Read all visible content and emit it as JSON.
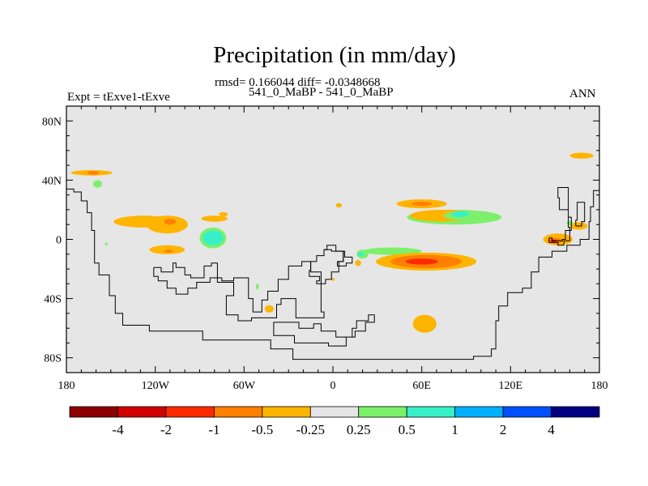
{
  "header": {
    "title": "Precipitation (in mm/day)",
    "stats": "rmsd= 0.166044 diff= -0.0348668",
    "case_pair": "541_0_MaBP - 541_0_MaBP",
    "expt": "Expt = tExve1-tExve",
    "season": "ANN"
  },
  "chart_data": {
    "type": "heatmap",
    "title": "Precipitation (in mm/day)",
    "subtitle": "rmsd= 0.166044 diff= -0.0348668",
    "xlabel": "",
    "ylabel": "",
    "xlim": [
      -180,
      180
    ],
    "ylim": [
      -90,
      90
    ],
    "x_ticks": [
      {
        "value": -180,
        "label": "180"
      },
      {
        "value": -120,
        "label": "120W"
      },
      {
        "value": -60,
        "label": "60W"
      },
      {
        "value": 0,
        "label": "0"
      },
      {
        "value": 60,
        "label": "60E"
      },
      {
        "value": 120,
        "label": "120E"
      },
      {
        "value": 180,
        "label": "180"
      }
    ],
    "y_ticks": [
      {
        "value": 80,
        "label": "80N"
      },
      {
        "value": 40,
        "label": "40N"
      },
      {
        "value": 0,
        "label": "0"
      },
      {
        "value": -40,
        "label": "40S"
      },
      {
        "value": -80,
        "label": "80S"
      }
    ],
    "background_color": "#e6e6e6",
    "levels": [
      "-4",
      "-2",
      "-1",
      "-0.5",
      "-0.25",
      "0.25",
      "0.5",
      "1",
      "2",
      "4"
    ],
    "colors": [
      "#8c0000",
      "#d10000",
      "#ff2a00",
      "#ff7f00",
      "#ffb400",
      "#e6e6e6",
      "#7cf06a",
      "#38f0c8",
      "#00b0ff",
      "#0050ff",
      "#000080"
    ],
    "regions": [
      {
        "label": "ring",
        "lon": 168,
        "lat": 56.5,
        "rx": 8,
        "ry": 2,
        "color": "#ffb400"
      },
      {
        "label": "nw-pac",
        "lon": -163,
        "lat": 45,
        "rx": 14,
        "ry": 1.8,
        "color": "#ffb400"
      },
      {
        "label": "nw-pac",
        "lon": -162,
        "lat": 45,
        "rx": 4,
        "ry": 1.2,
        "color": "#ff7f00"
      },
      {
        "label": "npac-wet",
        "lon": -159,
        "lat": 37.5,
        "rx": 3,
        "ry": 2.5,
        "color": "#7cf06a"
      },
      {
        "label": "e-pac",
        "lon": -128,
        "lat": 12,
        "rx": 20,
        "ry": 4,
        "color": "#ffb400"
      },
      {
        "label": "e-pac",
        "lon": -112,
        "lat": 10,
        "rx": 14,
        "ry": 6,
        "color": "#ffb400"
      },
      {
        "label": "e-pac",
        "lon": -110,
        "lat": 12,
        "rx": 4,
        "ry": 2,
        "color": "#ff7f00"
      },
      {
        "label": "e-pac-s",
        "lon": -112,
        "lat": -7,
        "rx": 12,
        "ry": 3,
        "color": "#ffb400"
      },
      {
        "label": "e-pac-s",
        "lon": -111,
        "lat": -8,
        "rx": 3,
        "ry": 1,
        "color": "#ff7f00"
      },
      {
        "label": "amazon-wet",
        "lon": -81,
        "lat": 1,
        "rx": 9,
        "ry": 7,
        "color": "#7cf06a"
      },
      {
        "label": "amazon-wet",
        "lon": -81,
        "lat": 1,
        "rx": 7,
        "ry": 5,
        "color": "#38f0c8"
      },
      {
        "label": "caribbean",
        "lon": -80,
        "lat": 14,
        "rx": 9,
        "ry": 2,
        "color": "#ffb400"
      },
      {
        "label": "s-atl",
        "lon": -43,
        "lat": -47,
        "rx": 3,
        "ry": 2.5,
        "color": "#ffb400"
      },
      {
        "label": "s-atl-wet",
        "lon": -51,
        "lat": -32,
        "rx": 1,
        "ry": 2,
        "color": "#7cf06a"
      },
      {
        "label": "gulf",
        "lon": -74,
        "lat": 17,
        "rx": 3,
        "ry": 1.5,
        "color": "#ffb400"
      },
      {
        "label": "mid-pac",
        "lon": -153,
        "lat": -3,
        "rx": 1,
        "ry": 1,
        "color": "#7cf06a"
      },
      {
        "label": "n-africa",
        "lon": 4,
        "lat": 23,
        "rx": 2,
        "ry": 1.5,
        "color": "#ffb400"
      },
      {
        "label": "india",
        "lon": 60,
        "lat": 24,
        "rx": 17,
        "ry": 3,
        "color": "#ffb400"
      },
      {
        "label": "india",
        "lon": 60,
        "lat": 24,
        "rx": 7,
        "ry": 1.5,
        "color": "#ff7f00"
      },
      {
        "label": "se-asia",
        "lon": 82,
        "lat": 15,
        "rx": 32,
        "ry": 5,
        "color": "#7cf06a"
      },
      {
        "label": "se-asia",
        "lon": 74,
        "lat": 16,
        "rx": 22,
        "ry": 4,
        "color": "#ffb400"
      },
      {
        "label": "se-asia",
        "lon": 87,
        "lat": 16,
        "rx": 12,
        "ry": 3,
        "color": "#7cf06a"
      },
      {
        "label": "se-asia",
        "lon": 86,
        "lat": 17,
        "rx": 6,
        "ry": 2,
        "color": "#38f0c8"
      },
      {
        "label": "equ-wet",
        "lon": 40,
        "lat": -8,
        "rx": 20,
        "ry": 2.5,
        "color": "#7cf06a"
      },
      {
        "label": "s-indian",
        "lon": 63,
        "lat": -15,
        "rx": 34,
        "ry": 6,
        "color": "#ffb400"
      },
      {
        "label": "s-indian",
        "lon": 63,
        "lat": -15,
        "rx": 24,
        "ry": 4.5,
        "color": "#ff7f00"
      },
      {
        "label": "s-indian",
        "lon": 60,
        "lat": -15,
        "rx": 11,
        "ry": 2,
        "color": "#ff2a00"
      },
      {
        "label": "congo-wet",
        "lon": 20,
        "lat": -10,
        "rx": 4,
        "ry": 3,
        "color": "#7cf06a"
      },
      {
        "label": "congo-wet",
        "lon": 19,
        "lat": -10,
        "rx": 2,
        "ry": 1.5,
        "color": "#38f0c8"
      },
      {
        "label": "africa-w",
        "lon": 17,
        "lat": -16,
        "rx": 2,
        "ry": 2,
        "color": "#ffb400"
      },
      {
        "label": "s-ocean",
        "lon": 62,
        "lat": -57,
        "rx": 8,
        "ry": 6,
        "color": "#ffb400"
      },
      {
        "label": "w-pac",
        "lon": 152,
        "lat": 0,
        "rx": 10,
        "ry": 4,
        "color": "#ffb400"
      },
      {
        "label": "w-pac",
        "lon": 150,
        "lat": -1,
        "rx": 5,
        "ry": 2,
        "color": "#ff7f00"
      },
      {
        "label": "w-pac",
        "lon": 149,
        "lat": -1,
        "rx": 2,
        "ry": 1,
        "color": "#ff2a00"
      },
      {
        "label": "w-pac-n",
        "lon": 166,
        "lat": 9,
        "rx": 6,
        "ry": 2.5,
        "color": "#ffb400"
      },
      {
        "label": "w-pac-n",
        "lon": 160,
        "lat": 11,
        "rx": 2,
        "ry": 1.5,
        "color": "#7cf06a"
      },
      {
        "label": "scattered",
        "lon": 0,
        "lat": -27,
        "rx": 1,
        "ry": 1,
        "color": "#ffb400"
      }
    ],
    "coastlines": [
      [
        [
          -180,
          34
        ],
        [
          -175,
          34
        ],
        [
          -175,
          32
        ],
        [
          -170,
          32
        ],
        [
          -170,
          26
        ],
        [
          -166,
          26
        ],
        [
          -166,
          18
        ],
        [
          -163,
          18
        ],
        [
          -163,
          6
        ],
        [
          -161,
          6
        ],
        [
          -161,
          -16
        ],
        [
          -158,
          -16
        ],
        [
          -158,
          -24
        ],
        [
          -151,
          -24
        ],
        [
          -151,
          -38
        ],
        [
          -147,
          -38
        ],
        [
          -147,
          -50
        ],
        [
          -142,
          -50
        ],
        [
          -142,
          -58
        ],
        [
          -124,
          -58
        ],
        [
          -124,
          -62
        ],
        [
          -88,
          -62
        ],
        [
          -88,
          -68
        ],
        [
          -42,
          -68
        ],
        [
          -42,
          -74
        ],
        [
          -27,
          -74
        ],
        [
          -27,
          -81
        ],
        [
          95,
          -81
        ],
        [
          95,
          -79
        ],
        [
          107,
          -79
        ],
        [
          107,
          -74
        ],
        [
          110,
          -74
        ],
        [
          110,
          -55
        ],
        [
          112,
          -55
        ],
        [
          112,
          -45
        ],
        [
          118,
          -45
        ],
        [
          118,
          -36
        ],
        [
          128,
          -36
        ],
        [
          128,
          -33
        ],
        [
          134,
          -33
        ],
        [
          134,
          -22
        ],
        [
          139,
          -22
        ],
        [
          139,
          -12
        ],
        [
          148,
          -12
        ],
        [
          148,
          -8
        ],
        [
          158,
          -8
        ],
        [
          158,
          -4
        ],
        [
          167,
          -4
        ],
        [
          167,
          0
        ],
        [
          173,
          0
        ],
        [
          173,
          12
        ],
        [
          174,
          12
        ],
        [
          174,
          22
        ],
        [
          176,
          22
        ],
        [
          176,
          33
        ],
        [
          180,
          33
        ]
      ],
      [
        [
          -121,
          -19
        ],
        [
          -116,
          -19
        ],
        [
          -116,
          -22
        ],
        [
          -108,
          -22
        ],
        [
          -108,
          -16
        ],
        [
          -106,
          -16
        ],
        [
          -106,
          -19
        ],
        [
          -100,
          -19
        ],
        [
          -100,
          -24
        ],
        [
          -96,
          -24
        ],
        [
          -96,
          -26
        ],
        [
          -87,
          -26
        ],
        [
          -87,
          -18
        ],
        [
          -82,
          -18
        ],
        [
          -82,
          -16
        ],
        [
          -78,
          -16
        ],
        [
          -78,
          -29
        ],
        [
          -67,
          -29
        ],
        [
          -67,
          -38
        ],
        [
          -72,
          -38
        ],
        [
          -72,
          -51
        ],
        [
          -64,
          -51
        ],
        [
          -64,
          -55
        ],
        [
          -55,
          -55
        ],
        [
          -55,
          -53
        ],
        [
          -38,
          -53
        ],
        [
          -38,
          -44
        ],
        [
          -35,
          -44
        ],
        [
          -35,
          -40
        ],
        [
          -25,
          -40
        ],
        [
          -25,
          -53
        ],
        [
          -6,
          -53
        ],
        [
          -6,
          -49
        ],
        [
          -8,
          -49
        ],
        [
          -8,
          -22
        ],
        [
          -15,
          -22
        ],
        [
          -15,
          -15
        ],
        [
          -21,
          -15
        ],
        [
          -21,
          -18
        ],
        [
          -30,
          -18
        ],
        [
          -30,
          -27
        ],
        [
          -37,
          -27
        ],
        [
          -37,
          -35
        ],
        [
          -44,
          -35
        ],
        [
          -44,
          -41
        ],
        [
          -48,
          -41
        ],
        [
          -48,
          -49
        ],
        [
          -54,
          -49
        ],
        [
          -54,
          -40
        ],
        [
          -57,
          -40
        ],
        [
          -57,
          -26
        ],
        [
          -67,
          -26
        ],
        [
          -67,
          -28
        ],
        [
          -75,
          -28
        ],
        [
          -75,
          -26
        ],
        [
          -83,
          -26
        ],
        [
          -83,
          -29
        ],
        [
          -92,
          -29
        ],
        [
          -92,
          -33
        ],
        [
          -98,
          -33
        ],
        [
          -98,
          -37
        ],
        [
          -106,
          -37
        ],
        [
          -106,
          -33
        ],
        [
          -112,
          -33
        ],
        [
          -112,
          -28
        ],
        [
          -118,
          -28
        ],
        [
          -118,
          -25
        ],
        [
          -121,
          -25
        ],
        [
          -121,
          -19
        ]
      ],
      [
        [
          -15,
          -15
        ],
        [
          -11,
          -15
        ],
        [
          -11,
          -11
        ],
        [
          -6,
          -11
        ],
        [
          -6,
          -7
        ],
        [
          -1,
          -7
        ],
        [
          -1,
          -8
        ],
        [
          7,
          -8
        ],
        [
          7,
          -15
        ],
        [
          4,
          -15
        ],
        [
          4,
          -22
        ],
        [
          -1,
          -22
        ],
        [
          -1,
          -27
        ],
        [
          -5,
          -27
        ],
        [
          -5,
          -30
        ],
        [
          -11,
          -30
        ],
        [
          -11,
          -28
        ],
        [
          -9,
          -28
        ],
        [
          -9,
          -25
        ],
        [
          -16,
          -25
        ],
        [
          -16,
          -21
        ],
        [
          -15,
          -21
        ],
        [
          -15,
          -15
        ]
      ],
      [
        [
          -6,
          -7
        ],
        [
          -4,
          -7
        ],
        [
          -4,
          -4
        ],
        [
          2,
          -4
        ],
        [
          2,
          -8
        ],
        [
          8,
          -8
        ],
        [
          8,
          -12
        ],
        [
          13,
          -12
        ],
        [
          13,
          -16
        ],
        [
          9,
          -16
        ],
        [
          9,
          -18
        ],
        [
          3,
          -18
        ],
        [
          3,
          -15
        ],
        [
          7,
          -15
        ],
        [
          7,
          -8
        ]
      ],
      [
        [
          -40,
          -60
        ],
        [
          -40,
          -56
        ],
        [
          -23,
          -56
        ],
        [
          -23,
          -60
        ],
        [
          -13,
          -60
        ],
        [
          -13,
          -57
        ],
        [
          -8,
          -57
        ],
        [
          -8,
          -62
        ],
        [
          2,
          -62
        ],
        [
          2,
          -66
        ],
        [
          13,
          -66
        ],
        [
          13,
          -60
        ],
        [
          16,
          -60
        ],
        [
          16,
          -55
        ],
        [
          24,
          -55
        ],
        [
          24,
          -51
        ],
        [
          28,
          -51
        ],
        [
          28,
          -56
        ],
        [
          22,
          -56
        ],
        [
          22,
          -62
        ],
        [
          15,
          -62
        ],
        [
          15,
          -66
        ],
        [
          9,
          -66
        ],
        [
          9,
          -72
        ],
        [
          -3,
          -72
        ],
        [
          -3,
          -70
        ],
        [
          -26,
          -70
        ],
        [
          -26,
          -65
        ],
        [
          -40,
          -65
        ],
        [
          -40,
          -60
        ]
      ],
      [
        [
          146,
          1
        ],
        [
          146,
          -2
        ],
        [
          152,
          -2
        ],
        [
          152,
          -4
        ],
        [
          156,
          -4
        ],
        [
          156,
          -1
        ],
        [
          160,
          -1
        ],
        [
          160,
          8
        ],
        [
          159,
          8
        ],
        [
          159,
          20
        ],
        [
          153,
          20
        ],
        [
          153,
          28
        ],
        [
          152,
          28
        ],
        [
          152,
          35
        ],
        [
          159,
          35
        ],
        [
          159,
          15
        ],
        [
          161,
          15
        ],
        [
          161,
          6
        ],
        [
          157,
          6
        ],
        [
          157,
          0
        ],
        [
          155,
          0
        ],
        [
          155,
          -1
        ],
        [
          148,
          -1
        ],
        [
          148,
          1
        ],
        [
          146,
          1
        ]
      ],
      [
        [
          164,
          9
        ],
        [
          168,
          9
        ],
        [
          168,
          12
        ],
        [
          170,
          12
        ],
        [
          170,
          25
        ],
        [
          165,
          25
        ],
        [
          165,
          13
        ],
        [
          164,
          13
        ],
        [
          164,
          9
        ]
      ]
    ],
    "colorbar_labels": [
      "-4",
      "-2",
      "-1",
      "-0.5",
      "-0.25",
      "0.25",
      "0.5",
      "1",
      "2",
      "4"
    ]
  }
}
